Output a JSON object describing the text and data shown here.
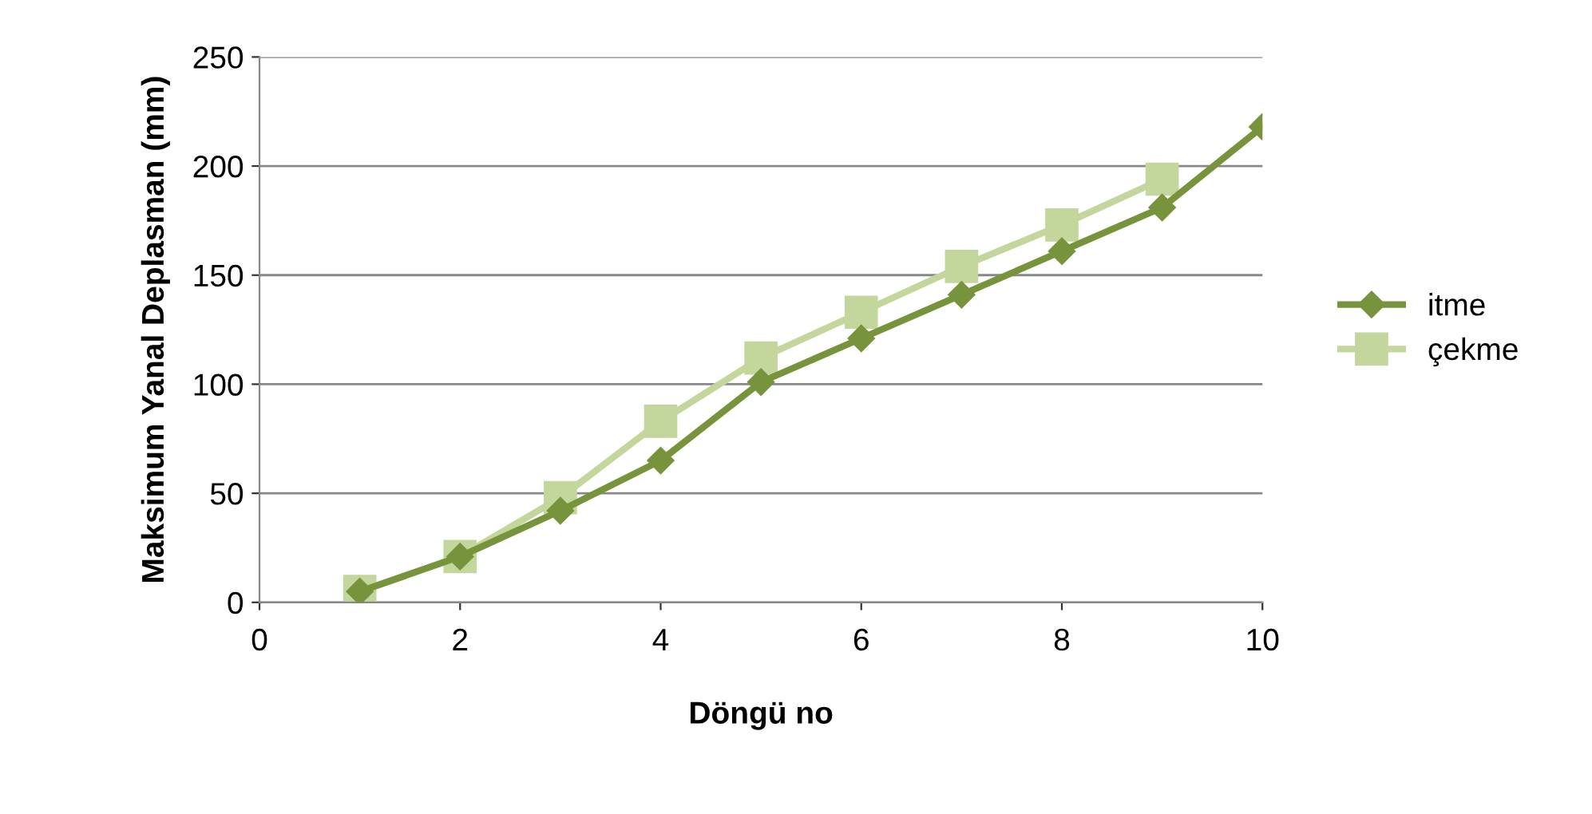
{
  "chart_data": {
    "type": "line",
    "xlabel": "Döngü no",
    "ylabel": "Maksimum Yanal Deplasman (mm)",
    "xlim": [
      0,
      10
    ],
    "xticks": [
      0,
      2,
      4,
      6,
      8,
      10
    ],
    "ylim": [
      0,
      250
    ],
    "yticks": [
      0,
      50,
      100,
      150,
      200,
      250
    ],
    "grid": "y",
    "legend": "right",
    "series": [
      {
        "name": "itme",
        "color": "#77933c",
        "marker": "diamond",
        "x": [
          1,
          2,
          3,
          4,
          5,
          6,
          7,
          8,
          9,
          10
        ],
        "values": [
          5,
          21,
          42,
          65,
          101,
          121,
          141,
          161,
          181,
          218
        ]
      },
      {
        "name": "çekme",
        "color": "#c3d69b",
        "marker": "square",
        "x": [
          1,
          2,
          3,
          4,
          5,
          6,
          7,
          8,
          9
        ],
        "values": [
          5,
          21,
          48,
          83,
          112,
          133,
          154,
          173,
          194
        ]
      }
    ]
  }
}
